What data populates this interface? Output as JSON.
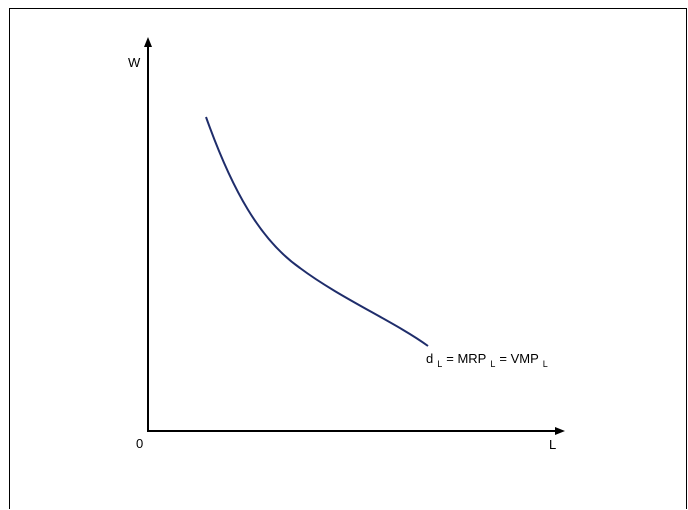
{
  "diagram": {
    "y_axis_label": "W",
    "x_axis_label": "L",
    "origin_label": "0",
    "curve_label": {
      "d": "d",
      "d_sub": "L",
      "eq1": " = MRP",
      "eq1_sub": "L",
      "eq2": " = VMP",
      "eq2_sub": "L"
    },
    "curve_color": "#1f2d6b"
  }
}
